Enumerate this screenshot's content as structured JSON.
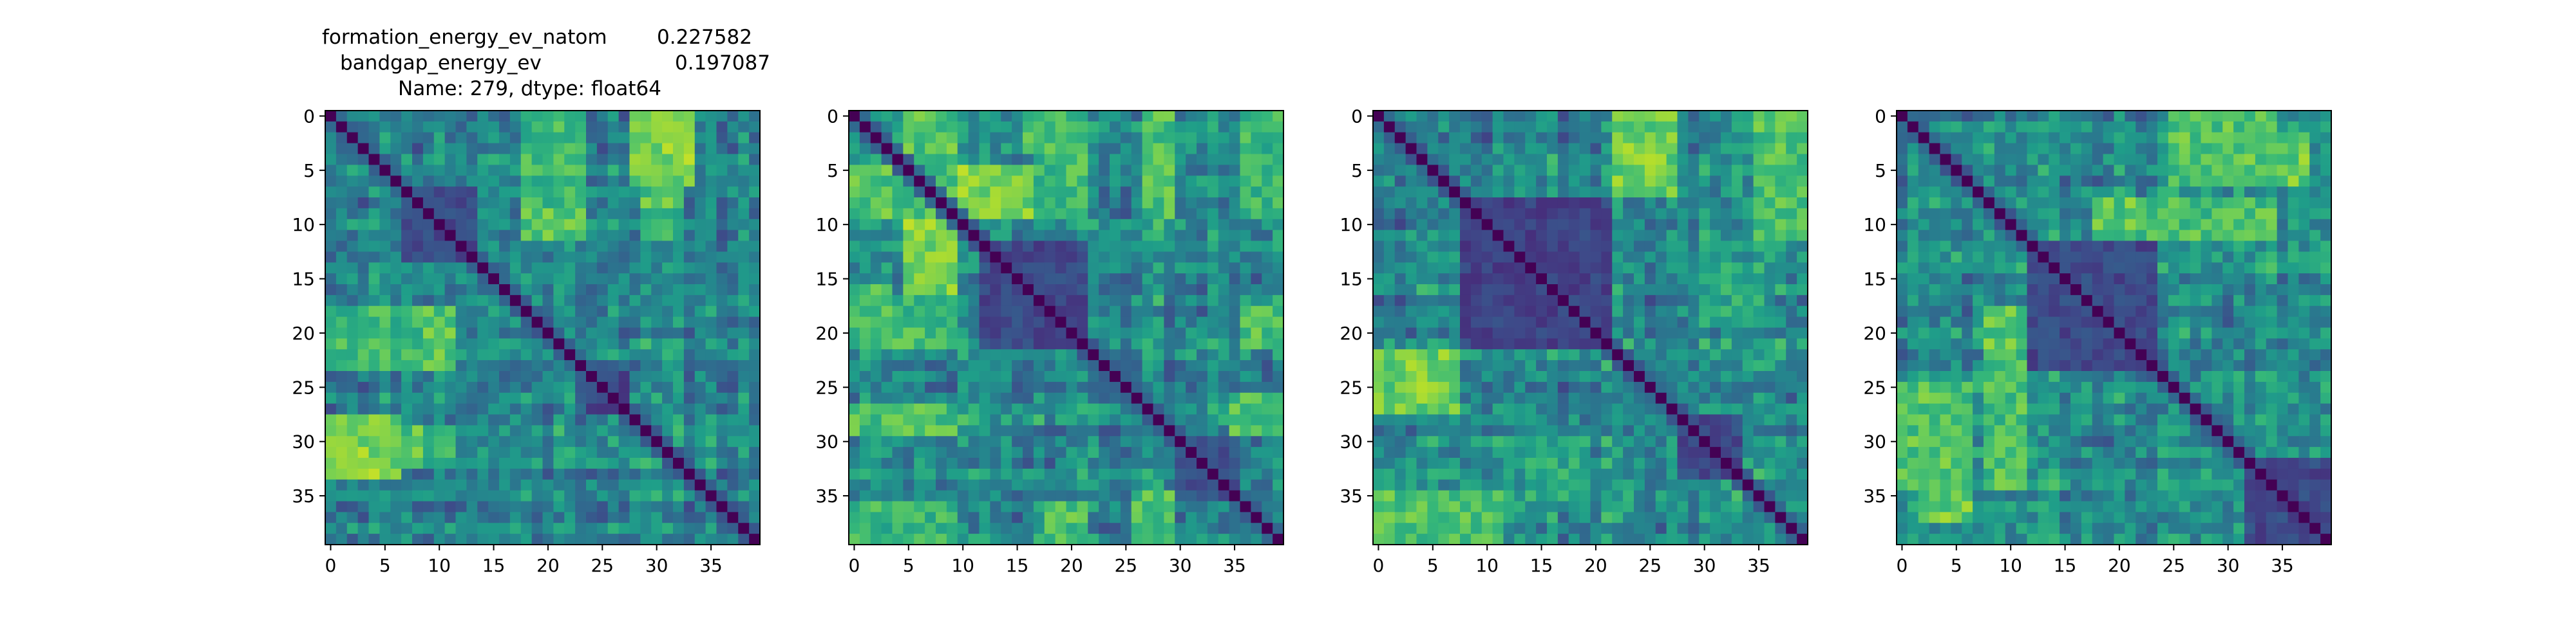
{
  "figure_title": {
    "line1_key": "formation_energy_ev_natom",
    "line1_value": "0.227582",
    "line2_key": "bandgap_energy_ev",
    "line2_value": "0.197087",
    "line3": "Name: 279, dtype: float64"
  },
  "colormap": {
    "name": "viridis",
    "stops": [
      "#440154",
      "#482878",
      "#3e4989",
      "#31688e",
      "#26828e",
      "#1f9e89",
      "#35b779",
      "#6ece58",
      "#b5de2b",
      "#fde725"
    ]
  },
  "chart_data": [
    {
      "type": "heatmap",
      "title": "",
      "size": 40,
      "xticks": [
        0,
        5,
        10,
        15,
        20,
        25,
        30,
        35
      ],
      "yticks": [
        0,
        5,
        10,
        15,
        20,
        25,
        30,
        35
      ],
      "xlim": [
        -0.5,
        39.5
      ],
      "ylim": [
        39.5,
        -0.5
      ],
      "value_range": [
        0,
        1
      ],
      "diagonal_value": 0,
      "hot_blocks": [
        {
          "rows": [
            0,
            10
          ],
          "cols": [
            18,
            24
          ],
          "level": 0.65
        },
        {
          "rows": [
            0,
            10
          ],
          "cols": [
            29,
            33
          ],
          "level": 0.72
        },
        {
          "rows": [
            18,
            24
          ],
          "cols": [
            0,
            7
          ],
          "level": 0.68
        },
        {
          "rows": [
            18,
            24
          ],
          "cols": [
            9,
            12
          ],
          "level": 0.78
        },
        {
          "rows": [
            28,
            34
          ],
          "cols": [
            0,
            7
          ],
          "level": 0.8
        },
        {
          "rows": [
            29,
            33
          ],
          "cols": [
            9,
            12
          ],
          "level": 0.62
        },
        {
          "rows": [
            9,
            12
          ],
          "cols": [
            18,
            24
          ],
          "level": 0.72
        }
      ],
      "cold_blocks": [
        {
          "rows": [
            7,
            14
          ],
          "cols": [
            7,
            14
          ],
          "level": 0.22
        },
        {
          "rows": [
            24,
            28
          ],
          "cols": [
            24,
            28
          ],
          "level": 0.2
        }
      ],
      "seed": 11
    },
    {
      "type": "heatmap",
      "title": "",
      "size": 40,
      "xticks": [
        0,
        5,
        10,
        15,
        20,
        25,
        30,
        35
      ],
      "yticks": [
        0,
        5,
        10,
        15,
        20,
        25,
        30,
        35
      ],
      "xlim": [
        -0.5,
        39.5
      ],
      "ylim": [
        39.5,
        -0.5
      ],
      "value_range": [
        0,
        1
      ],
      "diagonal_value": 0,
      "hot_blocks": [
        {
          "rows": [
            5,
            10
          ],
          "cols": [
            0,
            10
          ],
          "level": 0.72
        },
        {
          "rows": [
            5,
            10
          ],
          "cols": [
            10,
            20
          ],
          "level": 0.8
        },
        {
          "rows": [
            0,
            4
          ],
          "cols": [
            16,
            22
          ],
          "level": 0.7
        },
        {
          "rows": [
            0,
            4
          ],
          "cols": [
            28,
            30
          ],
          "level": 0.78
        },
        {
          "rows": [
            17,
            22
          ],
          "cols": [
            0,
            10
          ],
          "level": 0.68
        },
        {
          "rows": [
            27,
            30
          ],
          "cols": [
            0,
            10
          ],
          "level": 0.7
        },
        {
          "rows": [
            36,
            40
          ],
          "cols": [
            0,
            10
          ],
          "level": 0.66
        },
        {
          "rows": [
            36,
            40
          ],
          "cols": [
            18,
            22
          ],
          "level": 0.7
        },
        {
          "rows": [
            26,
            30
          ],
          "cols": [
            35,
            40
          ],
          "level": 0.72
        }
      ],
      "cold_blocks": [
        {
          "rows": [
            12,
            22
          ],
          "cols": [
            12,
            22
          ],
          "level": 0.22
        },
        {
          "rows": [
            30,
            36
          ],
          "cols": [
            30,
            36
          ],
          "level": 0.25
        }
      ],
      "seed": 29
    },
    {
      "type": "heatmap",
      "title": "",
      "size": 40,
      "xticks": [
        0,
        5,
        10,
        15,
        20,
        25,
        30,
        35
      ],
      "yticks": [
        0,
        5,
        10,
        15,
        20,
        25,
        30,
        35
      ],
      "xlim": [
        -0.5,
        39.5
      ],
      "ylim": [
        39.5,
        -0.5
      ],
      "value_range": [
        0,
        1
      ],
      "diagonal_value": 0,
      "hot_blocks": [
        {
          "rows": [
            0,
            7
          ],
          "cols": [
            22,
            28
          ],
          "level": 0.75
        },
        {
          "rows": [
            4,
            12
          ],
          "cols": [
            35,
            40
          ],
          "level": 0.72
        },
        {
          "rows": [
            22,
            28
          ],
          "cols": [
            0,
            8
          ],
          "level": 0.78
        },
        {
          "rows": [
            35,
            40
          ],
          "cols": [
            0,
            12
          ],
          "level": 0.72
        },
        {
          "rows": [
            30,
            36
          ],
          "cols": [
            14,
            20
          ],
          "level": 0.6
        }
      ],
      "cold_blocks": [
        {
          "rows": [
            8,
            22
          ],
          "cols": [
            8,
            22
          ],
          "level": 0.2
        },
        {
          "rows": [
            28,
            34
          ],
          "cols": [
            28,
            34
          ],
          "level": 0.22
        }
      ],
      "seed": 47
    },
    {
      "type": "heatmap",
      "title": "",
      "size": 40,
      "xticks": [
        0,
        5,
        10,
        15,
        20,
        25,
        30,
        35
      ],
      "yticks": [
        0,
        5,
        10,
        15,
        20,
        25,
        30,
        35
      ],
      "xlim": [
        -0.5,
        39.5
      ],
      "ylim": [
        39.5,
        -0.5
      ],
      "value_range": [
        0,
        1
      ],
      "diagonal_value": 0,
      "hot_blocks": [
        {
          "rows": [
            2,
            7
          ],
          "cols": [
            25,
            38
          ],
          "level": 0.76
        },
        {
          "rows": [
            8,
            12
          ],
          "cols": [
            18,
            34
          ],
          "level": 0.7
        },
        {
          "rows": [
            18,
            22
          ],
          "cols": [
            8,
            12
          ],
          "level": 0.74
        },
        {
          "rows": [
            25,
            35
          ],
          "cols": [
            0,
            7
          ],
          "level": 0.72
        },
        {
          "rows": [
            25,
            35
          ],
          "cols": [
            9,
            12
          ],
          "level": 0.7
        }
      ],
      "cold_blocks": [
        {
          "rows": [
            12,
            24
          ],
          "cols": [
            12,
            24
          ],
          "level": 0.22
        },
        {
          "rows": [
            32,
            40
          ],
          "cols": [
            32,
            40
          ],
          "level": 0.22
        }
      ],
      "seed": 83
    }
  ]
}
